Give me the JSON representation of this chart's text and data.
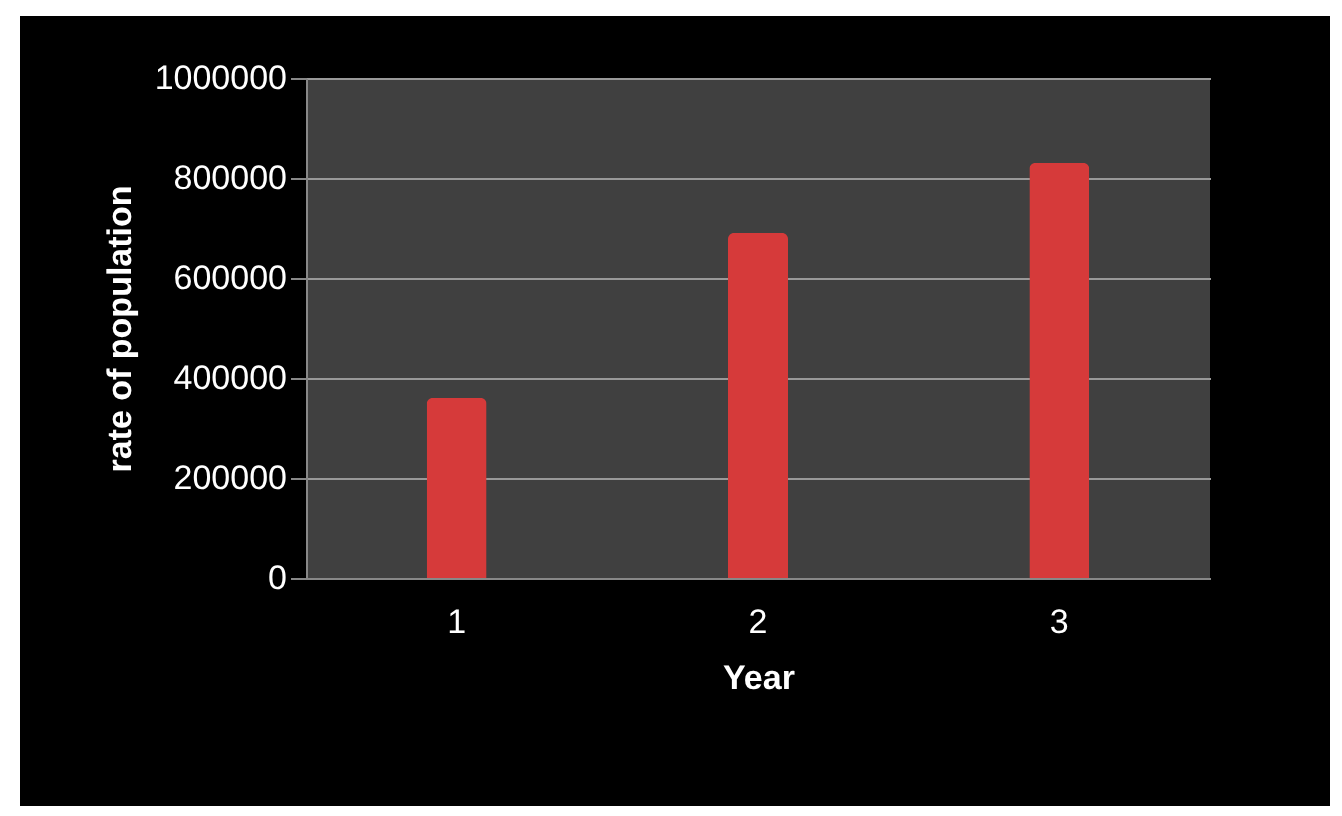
{
  "chart_data": {
    "type": "bar",
    "xlabel": "Year",
    "ylabel": "rate of population",
    "categories": [
      "1",
      "2",
      "3"
    ],
    "values": [
      360000,
      690000,
      830000
    ],
    "color": "#d63a3a",
    "ylim": [
      0,
      1000000
    ],
    "yticks": [
      0,
      200000,
      400000,
      600000,
      800000,
      1000000
    ],
    "grid": "y"
  }
}
